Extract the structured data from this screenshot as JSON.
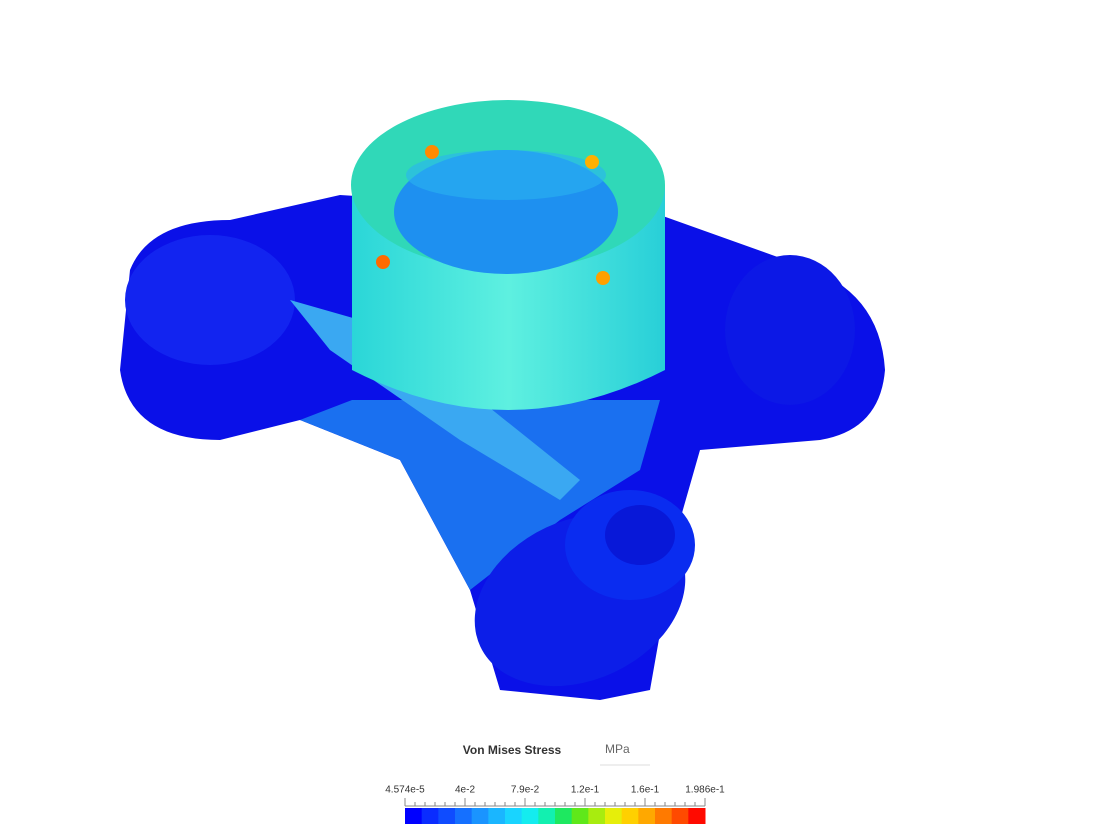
{
  "legend": {
    "title": "Von Mises Stress",
    "unit": "MPa",
    "tick_labels": [
      "4.574e-5",
      "4e-2",
      "7.9e-2",
      "1.2e-1",
      "1.6e-1",
      "1.986e-1"
    ],
    "colors": [
      "#0000ff",
      "#0a2cff",
      "#0f4cff",
      "#1570ff",
      "#1a94ff",
      "#1ab6ff",
      "#19d4ff",
      "#14ecef",
      "#12f0b0",
      "#1ee860",
      "#5fe81a",
      "#a8ec0f",
      "#e6ee0a",
      "#ffd000",
      "#ffa800",
      "#ff7a00",
      "#ff4a00",
      "#ff0a00"
    ]
  }
}
